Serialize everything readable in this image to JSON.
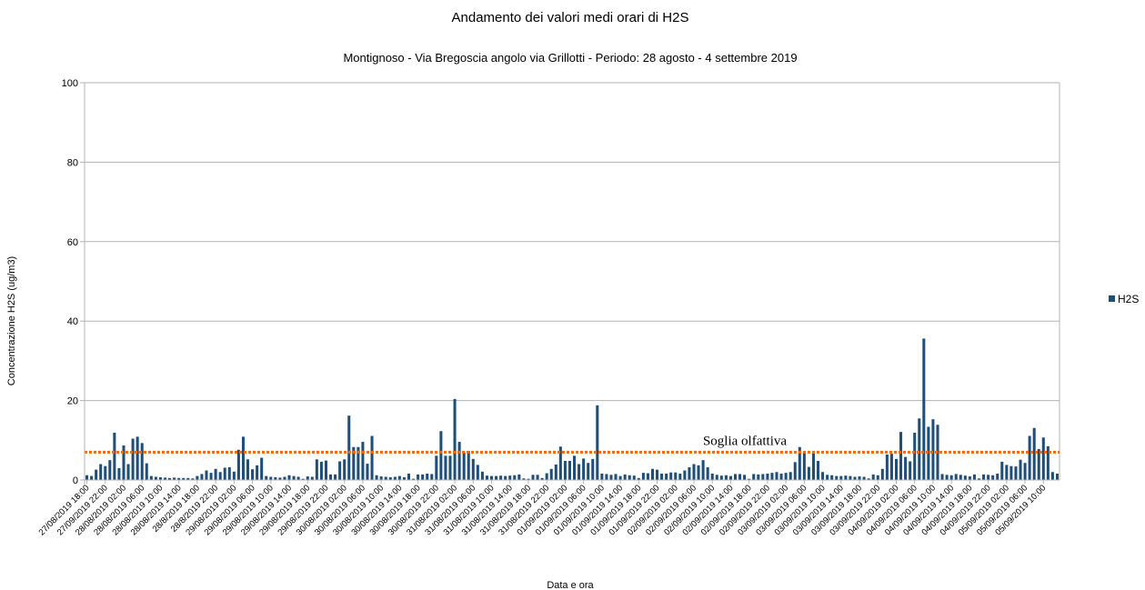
{
  "chart_data": {
    "type": "bar",
    "title": "Andamento dei valori medi orari di H2S",
    "subtitle": "Montignoso - Via Bregoscia angolo via Grillotti - Periodo: 28 agosto - 4 settembre 2019",
    "xlabel": "Data e ora",
    "ylabel": "Concentrazione H2S (ug/m3)",
    "ylim": [
      0,
      100
    ],
    "yticks": [
      0,
      20,
      40,
      60,
      80,
      100
    ],
    "grid": true,
    "legend_position": "right",
    "colors": {
      "bar": "#1f4e79",
      "threshold": "#ff6600",
      "grid": "#b3b3b3"
    },
    "threshold": {
      "label": "Soglia olfattiva",
      "value": 7
    },
    "x_tick_labels": [
      "27/08/2019 18:00",
      "27/09/2019 22:00",
      "28/08/2019 02:00",
      "28/08/2019 06:00",
      "28/08/2019 10:00",
      "28/08/2019 14:00",
      "28/8/2019 18:00",
      "28/8/2019 22:00",
      "29/08/2019 02:00",
      "29/08/2019 06:00",
      "29/08/2019 10:00",
      "29/08/2019 14:00",
      "29/08/2019 18:00",
      "29/08/2019 22:00",
      "30/08/2019 02:00",
      "30/08/2019 06:00",
      "30/08/2019 10:00",
      "30/08/2019 14:00",
      "30/08/2019 18:00",
      "30/08/2019 22:00",
      "31/08/2019 02:00",
      "31/08/2019 06:00",
      "31/08/2019 10:00",
      "31/08/2019 14:00",
      "31/08/2019 18:00",
      "31/08/2019 22:00",
      "01/09/2019 02:00",
      "01/09/2019 06:00",
      "01/09/2019 10:00",
      "01/09/2019 14:00",
      "01/09/2019 18:00",
      "01/09/2019 22:00",
      "02/09/2019 02:00",
      "02/09/2019 06:00",
      "02/09/2019 10:00",
      "02/09/2019 14:00",
      "02/09/2019 18:00",
      "02/09/2019 22:00",
      "03/09/2019 02:00",
      "03/09/2019 06:00",
      "03/09/2019 10:00",
      "03/09/2019 14:00",
      "03/09/2019 18:00",
      "03/09/2019 22:00",
      "04/09/2019 02:00",
      "04/09/2019 06:00",
      "04/09/2019 10:00",
      "04/09/2019 14:00",
      "04/09/2019 18:00",
      "04/09/2019 22:00",
      "05/09/2019 02:00",
      "05/09/2019 06:00",
      "05/09/2019 10:00"
    ],
    "series": [
      {
        "name": "H2S",
        "values": [
          1.2,
          1.0,
          2.6,
          4.0,
          3.5,
          5.0,
          11.9,
          3.0,
          8.7,
          4.0,
          10.4,
          10.9,
          9.3,
          4.2,
          1.0,
          0.8,
          0.7,
          0.6,
          0.5,
          0.6,
          0.5,
          0.5,
          0.5,
          0.4,
          1.0,
          1.5,
          2.4,
          1.8,
          2.8,
          2.0,
          3.1,
          3.2,
          2.1,
          7.6,
          10.9,
          5.2,
          2.7,
          3.7,
          5.6,
          1.0,
          0.8,
          0.7,
          0.6,
          0.8,
          1.2,
          1.0,
          0.8,
          0.3,
          0.9,
          0.8,
          5.2,
          4.6,
          4.9,
          1.4,
          1.4,
          4.7,
          5.2,
          16.2,
          8.3,
          8.3,
          9.6,
          4.1,
          11.1,
          1.2,
          0.9,
          0.8,
          0.7,
          0.8,
          1.0,
          0.7,
          1.6,
          0.3,
          1.4,
          1.4,
          1.6,
          1.5,
          6.1,
          12.3,
          6.1,
          6.1,
          20.4,
          9.6,
          6.9,
          7.3,
          5.3,
          3.8,
          2.1,
          1.1,
          1.0,
          1.0,
          1.1,
          1.0,
          1.1,
          1.2,
          1.4,
          0.4,
          0.3,
          1.3,
          1.3,
          0.5,
          1.7,
          2.8,
          3.9,
          8.4,
          4.8,
          4.8,
          6.1,
          4.0,
          5.4,
          4.3,
          5.3,
          18.8,
          1.6,
          1.5,
          1.3,
          1.5,
          1.0,
          1.4,
          1.2,
          1.1,
          0.5,
          1.8,
          1.7,
          2.8,
          2.6,
          1.6,
          1.6,
          1.9,
          1.9,
          1.6,
          2.4,
          3.2,
          4.0,
          3.7,
          5.0,
          3.2,
          1.6,
          1.3,
          1.1,
          1.2,
          1.0,
          1.5,
          1.5,
          1.3,
          0.3,
          1.5,
          1.4,
          1.5,
          1.6,
          1.8,
          2.0,
          1.6,
          1.8,
          2.0,
          4.5,
          8.3,
          7.1,
          3.3,
          6.7,
          4.8,
          2.0,
          1.3,
          1.2,
          1.0,
          1.0,
          1.1,
          1.0,
          0.8,
          0.9,
          0.8,
          0.4,
          1.4,
          1.2,
          2.8,
          6.4,
          6.6,
          5.3,
          12.1,
          5.8,
          4.7,
          11.9,
          15.5,
          35.6,
          13.4,
          15.3,
          13.9,
          1.5,
          1.3,
          1.2,
          1.5,
          1.3,
          1.1,
          0.9,
          1.4,
          0.4,
          1.4,
          1.3,
          1.2,
          1.6,
          4.6,
          3.8,
          3.5,
          3.4,
          5.1,
          4.3,
          11.1,
          13.1,
          7.8,
          10.7,
          8.5,
          2.0,
          1.6
        ]
      }
    ]
  }
}
